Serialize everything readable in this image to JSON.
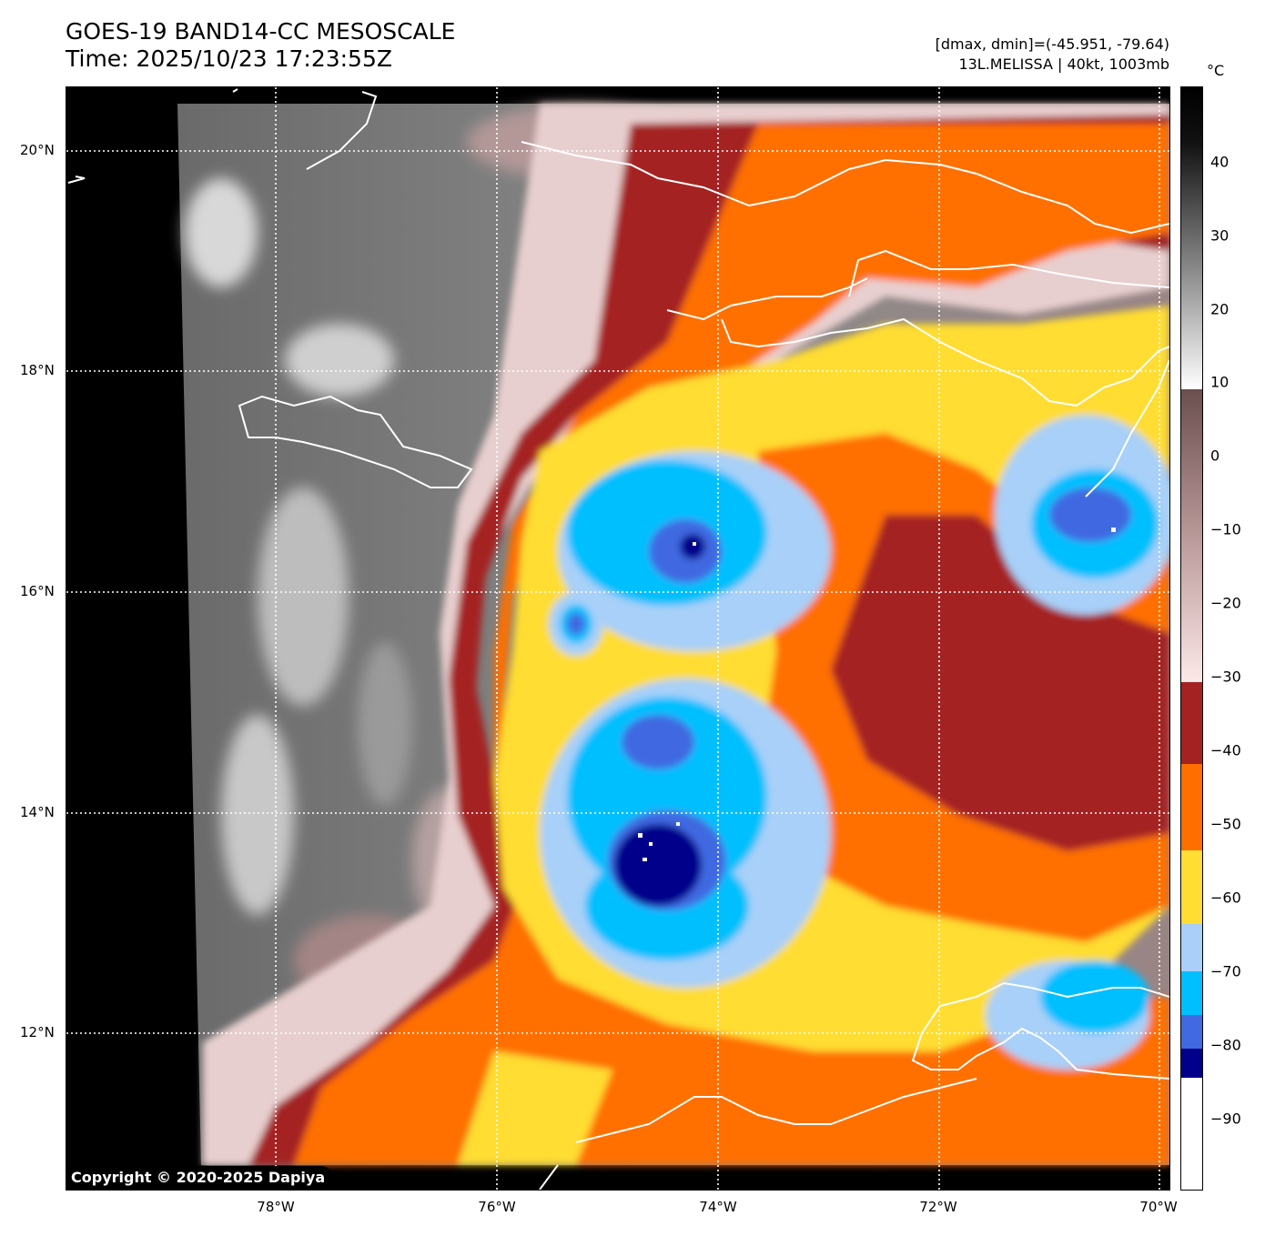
{
  "header": {
    "title_line1": "GOES-19 BAND14-CC MESOSCALE",
    "title_line2": "Time: 2025/10/23 17:23:55Z",
    "stats_line": "[dmax, dmin]=(-45.951, -79.64)",
    "storm_line": "13L.MELISSA | 40kt, 1003mb"
  },
  "map": {
    "lat_ticks": [
      "20°N",
      "18°N",
      "16°N",
      "14°N",
      "12°N"
    ],
    "lon_ticks": [
      "78°W",
      "76°W",
      "74°W",
      "72°W",
      "70°W"
    ],
    "copyright": "Copyright © 2020-2025 Dapiya"
  },
  "colorbar": {
    "unit": "°C",
    "tick_labels": [
      "40",
      "30",
      "20",
      "10",
      "0",
      "−10",
      "−20",
      "−30",
      "−40",
      "−50",
      "−60",
      "−70",
      "−80",
      "−90"
    ],
    "colors": {
      "white_band": "#ffffff",
      "navy": "#00008b",
      "royal_blue": "#4169e1",
      "deep_sky_blue": "#00bfff",
      "light_sky_blue": "#a8d0f8",
      "gold": "#ffdd33",
      "orange": "#ff6f00",
      "brown_red": "#a52222",
      "pink_high": "#fde8e8",
      "mauve_low": "#7a5a5a"
    }
  }
}
